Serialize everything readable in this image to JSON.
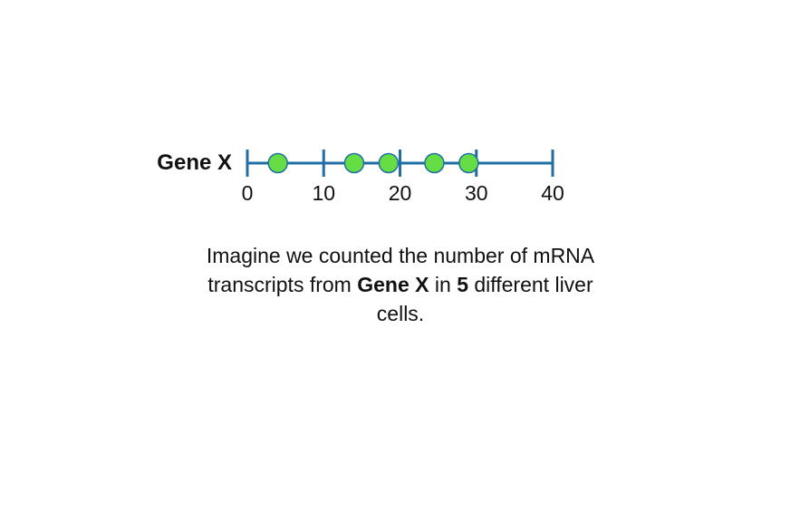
{
  "chart_data": {
    "type": "scatter",
    "row_label": "Gene X",
    "x": [
      4,
      14,
      18.5,
      24.5,
      29
    ],
    "xlim": [
      0,
      40
    ],
    "xticks": [
      0,
      10,
      20,
      30,
      40
    ],
    "xtick_labels": [
      "0",
      "10",
      "20",
      "30",
      "40"
    ],
    "grid": false,
    "colors": {
      "axis": "#1f6fa5",
      "point_fill": "#66dd44",
      "point_stroke": "#1f6fa5"
    }
  },
  "caption": {
    "line1": "Imagine we counted the number of mRNA",
    "line2_prefix": "transcripts from ",
    "line2_gene": "Gene X",
    "line2_middle": " in ",
    "line2_count": "5",
    "line2_suffix": " different liver",
    "line3": "cells."
  }
}
